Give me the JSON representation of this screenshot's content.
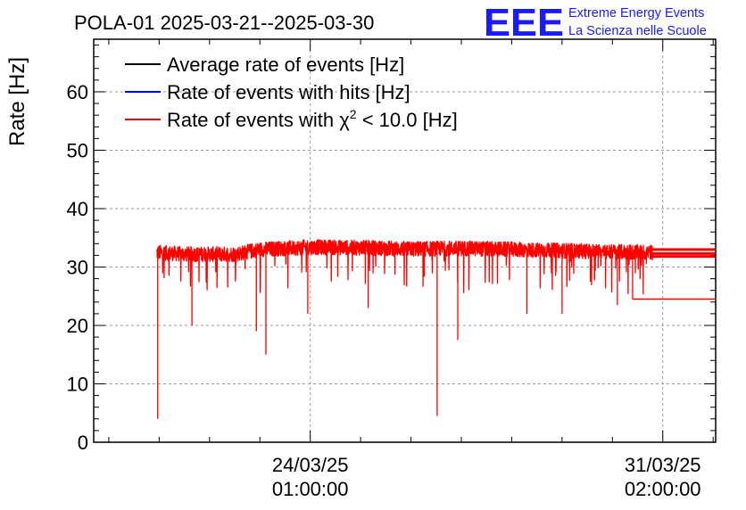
{
  "header": {
    "title": "POLA-01 2025-03-21--2025-03-30",
    "logo_text": "EEE",
    "org_line1": "Extreme Energy Events",
    "org_line2": "La Scienza nelle Scuole",
    "logo_color": "#1a1aff"
  },
  "chart_data": {
    "type": "line",
    "title": "POLA-01 2025-03-21--2025-03-30",
    "ylabel": "Rate [Hz]",
    "xlabel": "",
    "ylim": [
      0,
      69
    ],
    "xlim_days": [
      -4.3,
      8.05
    ],
    "grid": true,
    "x_ticks": [
      {
        "day": 0,
        "date": "24/03/25",
        "time": "01:00:00"
      },
      {
        "day": 7,
        "date": "31/03/25",
        "time": "02:00:00"
      }
    ],
    "y_ticks": [
      0,
      10,
      20,
      30,
      40,
      50,
      60
    ],
    "legend_position": "top-left",
    "series": [
      {
        "name": "Average rate of events [Hz]",
        "color": "#000000"
      },
      {
        "name": "Rate of events with hits [Hz]",
        "color": "#0000ff"
      },
      {
        "name": "Rate of events with χ² < 10.0 [Hz]",
        "color": "#ff0000"
      }
    ],
    "legend_parts": {
      "chi_prefix": "Rate of events with ",
      "chi_symbol": "χ",
      "chi_exp": "2",
      "chi_suffix": " < 10.0 [Hz]"
    },
    "trend": {
      "start_day": -3.05,
      "end_day": 6.8,
      "knots_day": [
        -3.05,
        -2.5,
        -1.5,
        -1.0,
        0.0,
        1.0,
        2.0,
        3.0,
        4.0,
        5.0,
        6.0,
        6.8
      ],
      "knots_hz": [
        32.5,
        32.2,
        32.2,
        33.0,
        33.4,
        33.3,
        33.1,
        33.2,
        33.0,
        32.8,
        32.6,
        32.5
      ],
      "noise_hz": 1.3,
      "dips": [
        {
          "day": -3.03,
          "hz": 4.0
        },
        {
          "day": -2.35,
          "hz": 20.0
        },
        {
          "day": -1.07,
          "hz": 19.0
        },
        {
          "day": -0.88,
          "hz": 15.0
        },
        {
          "day": -0.05,
          "hz": 22.0
        },
        {
          "day": 1.15,
          "hz": 23.0
        },
        {
          "day": 2.52,
          "hz": 4.5
        },
        {
          "day": 2.93,
          "hz": 17.5
        },
        {
          "day": 4.3,
          "hz": 22.0
        },
        {
          "day": 5.0,
          "hz": 22.0
        },
        {
          "day": 6.1,
          "hz": 23.5
        },
        {
          "day": 6.4,
          "hz": 24.5
        }
      ],
      "tail_start_day": 6.8,
      "tail_end_day": 8.05,
      "tail_levels_hz": [
        31.8,
        32.3,
        33.0
      ],
      "tail_low_hz": 24.5,
      "tail_low_start_day": 6.4
    }
  }
}
